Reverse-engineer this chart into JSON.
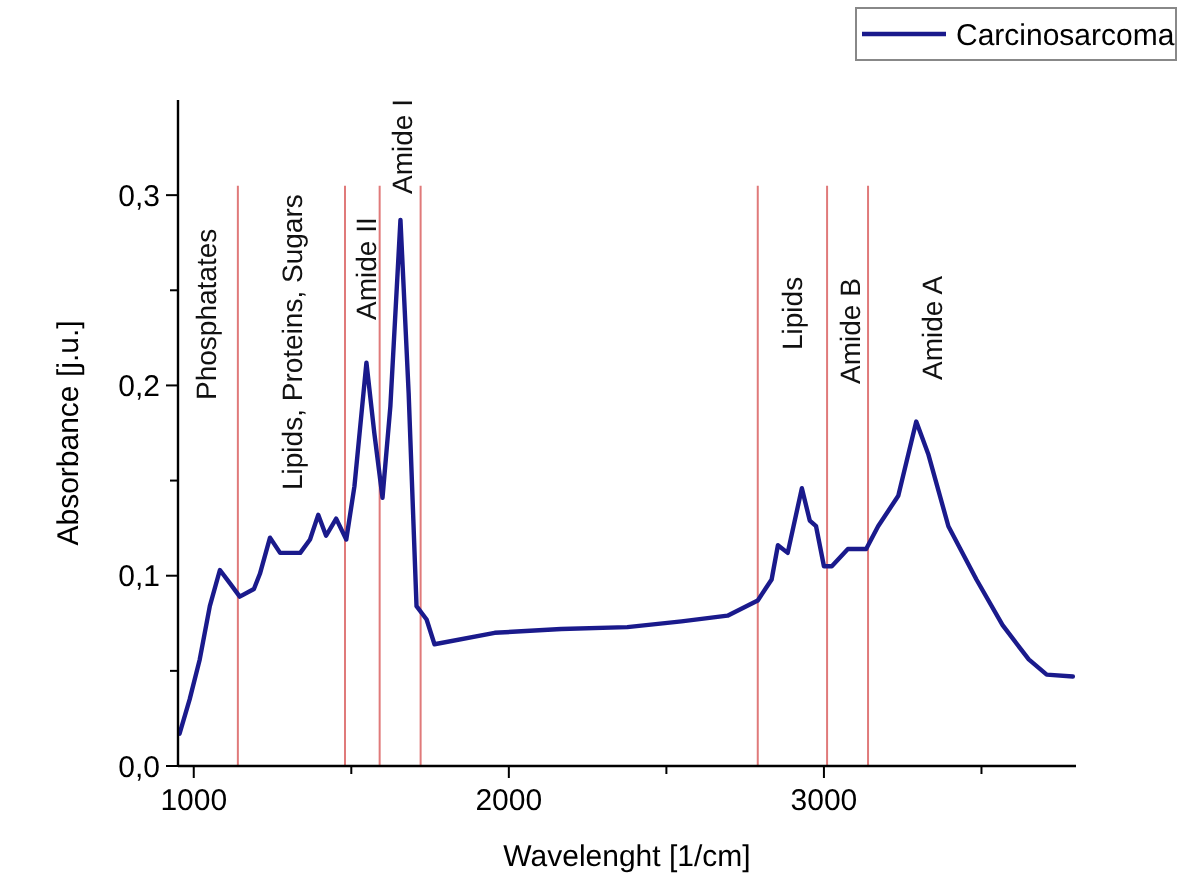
{
  "chart_data": {
    "type": "line",
    "xlabel": "Wavelenght [1/cm]",
    "ylabel": "Absorbance [j.u.]",
    "xlim": [
      950,
      3800
    ],
    "ylim": [
      0,
      0.35
    ],
    "xticks": [
      {
        "value": 1000,
        "label": "1000"
      },
      {
        "value": 1500,
        "label": null
      },
      {
        "value": 2000,
        "label": "2000"
      },
      {
        "value": 2500,
        "label": null
      },
      {
        "value": 3000,
        "label": "3000"
      },
      {
        "value": 3500,
        "label": null
      }
    ],
    "yticks": [
      {
        "value": 0,
        "label": "0,0"
      },
      {
        "value": 0.05,
        "label": null
      },
      {
        "value": 0.1,
        "label": "0,1"
      },
      {
        "value": 0.15,
        "label": null
      },
      {
        "value": 0.2,
        "label": "0,2"
      },
      {
        "value": 0.25,
        "label": null
      },
      {
        "value": 0.3,
        "label": "0,3"
      }
    ],
    "grid": false,
    "legend": "top right",
    "line_style": "solid",
    "marker": "none",
    "series": [
      {
        "name": "Carcinosarcoma",
        "color": "#1a1a8c",
        "x": [
          955,
          987,
          1019,
          1051,
          1083,
          1115,
          1146,
          1191,
          1210,
          1242,
          1274,
          1338,
          1369,
          1395,
          1420,
          1452,
          1484,
          1510,
          1548,
          1573,
          1599,
          1624,
          1656,
          1682,
          1707,
          1739,
          1764,
          1955,
          2166,
          2376,
          2548,
          2694,
          2790,
          2834,
          2854,
          2885,
          2930,
          2955,
          2975,
          3000,
          3025,
          3076,
          3134,
          3172,
          3236,
          3293,
          3331,
          3395,
          3484,
          3567,
          3650,
          3707,
          3790
        ],
        "values": [
          0.017,
          0.035,
          0.056,
          0.084,
          0.103,
          0.096,
          0.089,
          0.093,
          0.101,
          0.12,
          0.112,
          0.112,
          0.119,
          0.132,
          0.121,
          0.13,
          0.119,
          0.147,
          0.212,
          0.175,
          0.141,
          0.189,
          0.287,
          0.196,
          0.084,
          0.077,
          0.064,
          0.07,
          0.072,
          0.073,
          0.076,
          0.079,
          0.087,
          0.098,
          0.116,
          0.112,
          0.146,
          0.129,
          0.126,
          0.105,
          0.105,
          0.114,
          0.114,
          0.126,
          0.142,
          0.181,
          0.164,
          0.126,
          0.098,
          0.074,
          0.056,
          0.048,
          0.047
        ]
      }
    ],
    "ref_lines": [
      {
        "axis": "x",
        "value": 1140,
        "color": "#e07a7a"
      },
      {
        "axis": "x",
        "value": 1480,
        "color": "#e07a7a"
      },
      {
        "axis": "x",
        "value": 1590,
        "color": "#e07a7a"
      },
      {
        "axis": "x",
        "value": 1720,
        "color": "#e07a7a"
      },
      {
        "axis": "x",
        "value": 2790,
        "color": "#e07a7a"
      },
      {
        "axis": "x",
        "value": 3010,
        "color": "#e07a7a"
      },
      {
        "axis": "x",
        "value": 3140,
        "color": "#e07a7a"
      }
    ],
    "annotations": [
      "Phosphatates",
      "Lipids, Proteins, Sugars",
      "Amide II",
      "Amide I",
      "Lipids",
      "Amide B",
      "Amide A"
    ]
  }
}
